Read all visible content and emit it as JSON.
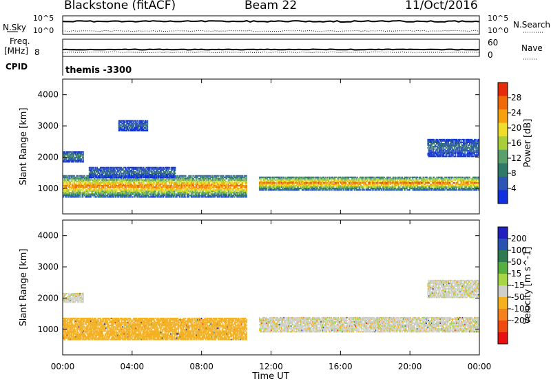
{
  "header": {
    "station": "Blackstone (fitACF)",
    "beam": "Beam 22",
    "date": "11/Oct/2016"
  },
  "noise_panel": {
    "left_label": "N.Sky",
    "right_label": "N.Search",
    "left_ticks": [
      "10^5",
      "10^0"
    ],
    "right_ticks": [
      "10^5",
      "10^0"
    ]
  },
  "freq_panel": {
    "left_label_1": "Freq.",
    "left_label_2": "[MHz]",
    "left_ticks": [
      "8"
    ],
    "right_label": "Nave",
    "right_ticks": [
      "60",
      "0"
    ]
  },
  "cpid_panel": {
    "label": "CPID",
    "value": "themis -3300"
  },
  "x_axis": {
    "label": "Time UT",
    "ticks": [
      "00:00",
      "04:00",
      "08:00",
      "12:00",
      "16:00",
      "20:00",
      "00:00"
    ]
  },
  "colors": {
    "power_scale": [
      "#1030e0",
      "#2d55b5",
      "#2f7a67",
      "#5aa06a",
      "#a8cf3a",
      "#f0dc2a",
      "#f5a00c",
      "#f06a0a",
      "#e62a0a"
    ],
    "velocity_scale": [
      "#2020c0",
      "#2a52b0",
      "#2e7a50",
      "#55b040",
      "#a6d646",
      "#cfcfcb",
      "#f5b01e",
      "#f5801e",
      "#f04a10",
      "#e81010"
    ]
  },
  "chart_data": [
    {
      "type": "heatmap",
      "panel": "power",
      "xlabel": "Time UT",
      "ylabel": "Slant Range [km]",
      "xlim": [
        0,
        24
      ],
      "ylim": [
        180,
        4500
      ],
      "yticks": [
        "1000",
        "2000",
        "3000",
        "4000"
      ],
      "colorbar": {
        "label": "Power [dB]",
        "ticks": [
          "4",
          "8",
          "12",
          "16",
          "20",
          "24",
          "28"
        ],
        "range": [
          0,
          32
        ]
      },
      "bands": [
        {
          "t_start": 0.0,
          "t_end": 10.6,
          "range_center_km": 1050,
          "range_width_km": 700,
          "peak_db": 26
        },
        {
          "t_start": 0.0,
          "t_end": 1.2,
          "range_center_km": 2000,
          "range_width_km": 350,
          "peak_db": 10
        },
        {
          "t_start": 1.5,
          "t_end": 6.5,
          "range_center_km": 1500,
          "range_width_km": 350,
          "peak_db": 8
        },
        {
          "t_start": 3.2,
          "t_end": 4.9,
          "range_center_km": 3000,
          "range_width_km": 350,
          "peak_db": 7
        },
        {
          "t_start": 11.3,
          "t_end": 24.0,
          "range_center_km": 1150,
          "range_width_km": 450,
          "peak_db": 26
        },
        {
          "t_start": 21.0,
          "t_end": 24.0,
          "range_center_km": 2300,
          "range_width_km": 600,
          "peak_db": 8
        }
      ]
    },
    {
      "type": "heatmap",
      "panel": "velocity",
      "xlabel": "Time UT",
      "ylabel": "Slant Range [km]",
      "xlim": [
        0,
        24
      ],
      "ylim": [
        180,
        4500
      ],
      "yticks": [
        "1000",
        "2000",
        "3000",
        "4000"
      ],
      "colorbar": {
        "label": "Velocity [m s^-1]",
        "ticks": [
          "200",
          "100",
          "50",
          "15",
          "-15",
          "-50",
          "-100",
          "-200"
        ]
      },
      "bands": [
        {
          "t_start": 0.0,
          "t_end": 10.6,
          "range_center_km": 1000,
          "range_width_km": 700,
          "velocity_ms": -60
        },
        {
          "t_start": 0.0,
          "t_end": 1.2,
          "range_center_km": 2000,
          "range_width_km": 300,
          "velocity_ms": 0
        },
        {
          "t_start": 11.3,
          "t_end": 24.0,
          "range_center_km": 1150,
          "range_width_km": 500,
          "velocity_ms": 0
        },
        {
          "t_start": 21.0,
          "t_end": 24.0,
          "range_center_km": 2300,
          "range_width_km": 600,
          "velocity_ms": 0
        }
      ]
    }
  ]
}
